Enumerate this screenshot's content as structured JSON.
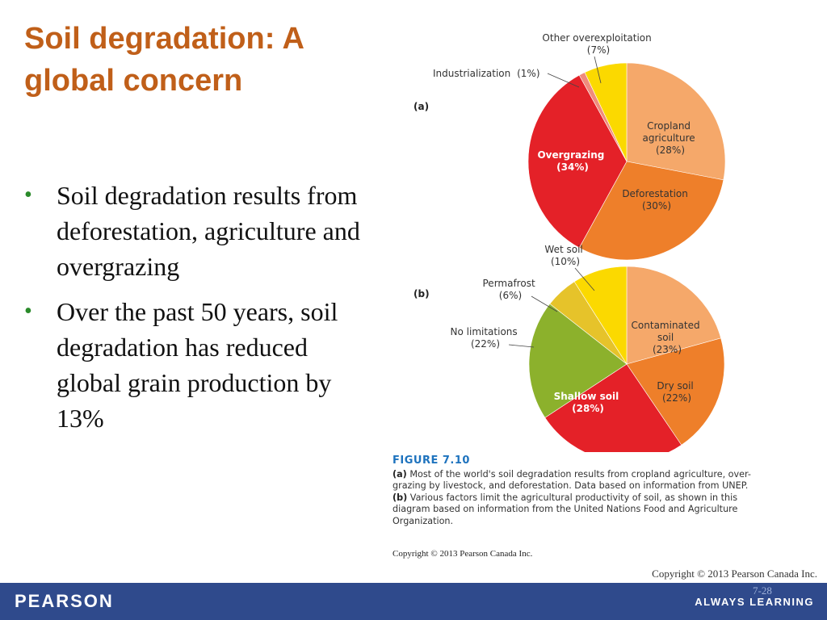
{
  "slide": {
    "title": "Soil degradation: A global concern",
    "bullets": [
      "Soil degradation results from deforestation, agriculture and overgrazing",
      "Over the past 50 years, soil degradation has reduced global grain production by 13%"
    ],
    "copyright": "Copyright © 2013 Pearson Canada Inc.",
    "page_number": "7-28"
  },
  "footer": {
    "brand": "PEARSON",
    "tagline": "ALWAYS LEARNING"
  },
  "figure": {
    "panel_a_label": "(a)",
    "panel_b_label": "(b)",
    "figure_number": "FIGURE 7.10",
    "caption_a_marker": "(a)",
    "caption_a": " Most of the world's soil degradation results from cropland agriculture, over-grazing by livestock, and deforestation. Data based on information from UNEP. ",
    "caption_b_marker": "(b)",
    "caption_b": " Various factors limit the agricultural productivity of soil, as shown in this diagram based on information from the United Nations Food and Agriculture Organization.",
    "copyright": "Copyright © 2013 Pearson Canada Inc."
  },
  "chart_data": [
    {
      "type": "pie",
      "panel": "(a)",
      "slices": [
        {
          "label": "Cropland agriculture",
          "value": 28,
          "display": "(28%)",
          "color": "#f5a86a"
        },
        {
          "label": "Deforestation",
          "value": 30,
          "display": "(30%)",
          "color": "#ee7f2a"
        },
        {
          "label": "Overgrazing",
          "value": 34,
          "display": "(34%)",
          "color": "#e42128"
        },
        {
          "label": "Industrialization",
          "value": 1,
          "display": "(1%)",
          "color": "#f08b7c"
        },
        {
          "label": "Other overexploitation",
          "value": 7,
          "display": "(7%)",
          "color": "#fbd900"
        }
      ]
    },
    {
      "type": "pie",
      "panel": "(b)",
      "slices": [
        {
          "label": "Contaminated soil",
          "value": 23,
          "display": "(23%)",
          "color": "#f5a86a"
        },
        {
          "label": "Dry soil",
          "value": 22,
          "display": "(22%)",
          "color": "#ee7f2a"
        },
        {
          "label": "Shallow soil",
          "value": 28,
          "display": "(28%)",
          "color": "#e42128"
        },
        {
          "label": "No limitations",
          "value": 22,
          "display": "(22%)",
          "color": "#8cb12c"
        },
        {
          "label": "Permafrost",
          "value": 6,
          "display": "(6%)",
          "color": "#e6c32a"
        },
        {
          "label": "Wet soil",
          "value": 10,
          "display": "(10%)",
          "color": "#fbd900"
        }
      ]
    }
  ]
}
